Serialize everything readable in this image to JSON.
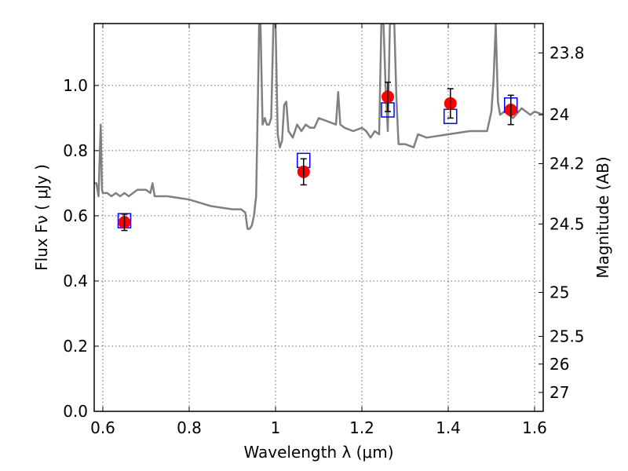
{
  "chart_data": {
    "type": "scatter",
    "xlabel": "Wavelength  λ (μm)",
    "ylabel": "Flux  Fν  ( μJy )",
    "y2label": "Magnitude (AB)",
    "xlim": [
      0.58,
      1.62
    ],
    "ylim": [
      0.0,
      1.19
    ],
    "grid": true,
    "x_ticks": [
      0.6,
      0.8,
      1.0,
      1.2,
      1.4,
      1.6
    ],
    "x_tick_labels": [
      "0.6",
      "0.8",
      "1",
      "1.2",
      "1.4",
      "1.6"
    ],
    "y_ticks": [
      0.0,
      0.2,
      0.4,
      0.6,
      0.8,
      1.0
    ],
    "y_tick_labels": [
      "0.0",
      "0.2",
      "0.4",
      "0.6",
      "0.8",
      "1.0"
    ],
    "y2_ticks": [
      {
        "label": "23.8",
        "flux": 1.1
      },
      {
        "label": "24",
        "flux": 0.91
      },
      {
        "label": "24.2",
        "flux": 0.76
      },
      {
        "label": "24.5",
        "flux": 0.575
      },
      {
        "label": "25",
        "flux": 0.365
      },
      {
        "label": "25.5",
        "flux": 0.23
      },
      {
        "label": "26",
        "flux": 0.145
      },
      {
        "label": "27",
        "flux": 0.058
      }
    ],
    "model_spectrum": {
      "color": "#808080",
      "x": [
        0.58,
        0.585,
        0.59,
        0.595,
        0.598,
        0.6,
        0.605,
        0.61,
        0.62,
        0.63,
        0.64,
        0.65,
        0.66,
        0.67,
        0.68,
        0.69,
        0.7,
        0.71,
        0.715,
        0.72,
        0.73,
        0.75,
        0.8,
        0.85,
        0.9,
        0.905,
        0.92,
        0.93,
        0.935,
        0.94,
        0.945,
        0.95,
        0.955,
        0.96,
        0.962,
        0.965,
        0.97,
        0.975,
        0.98,
        0.985,
        0.99,
        0.995,
        1.0,
        1.005,
        1.01,
        1.015,
        1.02,
        1.025,
        1.03,
        1.04,
        1.05,
        1.06,
        1.07,
        1.08,
        1.09,
        1.1,
        1.12,
        1.14,
        1.145,
        1.15,
        1.16,
        1.18,
        1.2,
        1.21,
        1.22,
        1.23,
        1.24,
        1.245,
        1.25,
        1.255,
        1.26,
        1.265,
        1.27,
        1.275,
        1.28,
        1.285,
        1.29,
        1.3,
        1.32,
        1.33,
        1.35,
        1.4,
        1.45,
        1.49,
        1.5,
        1.505,
        1.51,
        1.515,
        1.52,
        1.53,
        1.55,
        1.57,
        1.59,
        1.6,
        1.62
      ],
      "y": [
        0.7,
        0.7,
        0.66,
        0.88,
        0.68,
        0.67,
        0.67,
        0.67,
        0.66,
        0.67,
        0.66,
        0.67,
        0.66,
        0.67,
        0.68,
        0.68,
        0.68,
        0.67,
        0.7,
        0.66,
        0.66,
        0.66,
        0.65,
        0.63,
        0.62,
        0.62,
        0.62,
        0.61,
        0.56,
        0.56,
        0.57,
        0.6,
        0.66,
        1.02,
        1.2,
        1.2,
        0.88,
        0.9,
        0.88,
        0.88,
        0.9,
        1.2,
        1.2,
        0.85,
        0.81,
        0.83,
        0.94,
        0.95,
        0.86,
        0.84,
        0.88,
        0.86,
        0.88,
        0.87,
        0.87,
        0.9,
        0.89,
        0.88,
        0.98,
        0.88,
        0.87,
        0.86,
        0.87,
        0.86,
        0.84,
        0.86,
        0.85,
        1.2,
        1.2,
        1.0,
        0.86,
        1.2,
        1.2,
        1.2,
        0.96,
        0.82,
        0.82,
        0.82,
        0.81,
        0.85,
        0.84,
        0.85,
        0.86,
        0.86,
        0.92,
        1.02,
        1.2,
        0.95,
        0.91,
        0.92,
        0.9,
        0.93,
        0.91,
        0.92,
        0.91
      ]
    },
    "observed": {
      "color": "#ff0000",
      "points": [
        {
          "x": 0.65,
          "y": 0.58,
          "err": 0.025
        },
        {
          "x": 1.065,
          "y": 0.735,
          "err": 0.04
        },
        {
          "x": 1.26,
          "y": 0.965,
          "err": 0.045
        },
        {
          "x": 1.405,
          "y": 0.945,
          "err": 0.045
        },
        {
          "x": 1.545,
          "y": 0.925,
          "err": 0.045
        }
      ]
    },
    "model_photometry": {
      "color": "#0000ff",
      "points": [
        {
          "x": 0.65,
          "y": 0.585
        },
        {
          "x": 1.065,
          "y": 0.77
        },
        {
          "x": 1.26,
          "y": 0.925
        },
        {
          "x": 1.405,
          "y": 0.905
        },
        {
          "x": 1.545,
          "y": 0.94
        }
      ]
    }
  }
}
